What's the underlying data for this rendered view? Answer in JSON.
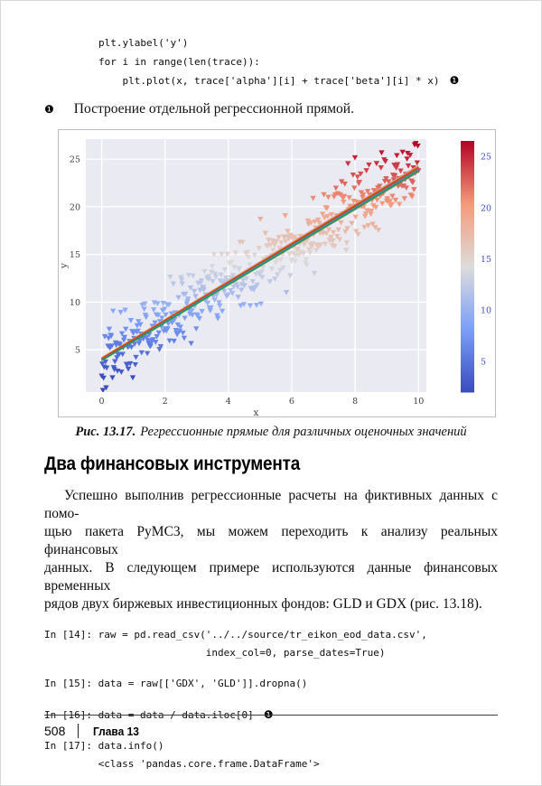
{
  "top_code": {
    "lines": [
      "plt.ylabel('y')",
      "for i in range(len(trace)):",
      "    plt.plot(x, trace['alpha'][i] + trace['beta'][i] * x)"
    ],
    "callout": "❶"
  },
  "annotation": {
    "marker": "❶",
    "text": "Построение отдельной регрессионной прямой."
  },
  "figure_caption": {
    "label": "Рис. 13.17.",
    "text": "Регрессионные прямые для различных оценочных значений"
  },
  "chart_data": {
    "type": "scatter",
    "title": "",
    "xlabel": "x",
    "ylabel": "y",
    "xlim": [
      -0.5,
      10.25
    ],
    "ylim": [
      0.55,
      27.1
    ],
    "xticks": [
      0,
      2,
      4,
      6,
      8,
      10
    ],
    "yticks": [
      5,
      10,
      15,
      20,
      25
    ],
    "grid": true,
    "legend": "none",
    "background": "#eaeaf2",
    "grid_color": "#ffffff",
    "marker": "triangle-down",
    "n_points": 500,
    "seed": 42,
    "model": {
      "intercept": 4,
      "slope": 2,
      "noise_std": 1.8,
      "x_range": [
        0,
        10
      ]
    },
    "colormap": "coolwarm",
    "coolwarm_anchors": [
      [
        59,
        76,
        192
      ],
      [
        124,
        159,
        249
      ],
      [
        221,
        220,
        219
      ],
      [
        244,
        154,
        123
      ],
      [
        180,
        4,
        38
      ]
    ],
    "colorbar": {
      "vmin": 2.0,
      "vmax": 26.5,
      "ticks": [
        5,
        10,
        15,
        20,
        25
      ]
    },
    "regression_lines": {
      "count": 24,
      "intercept_jitter": 0.22,
      "slope_jitter": 0.02,
      "colors": [
        "#1f77b4",
        "#ff7f0e",
        "#2ca02c",
        "#d62728",
        "#9467bd",
        "#8c564b",
        "#e377c2",
        "#7f7f7f",
        "#bcbd22",
        "#17becf"
      ]
    }
  },
  "section": {
    "heading": "Два финансовых инструмента",
    "paragraph_lines": [
      "Успешно выполнив регрессионные расчеты на фиктивных данных с помо-",
      "щью пакета PyMC3, мы можем переходить к анализу реальных финансовых",
      "данных. В следующем примере используются данные финансовых временных",
      "рядов двух биржевых инвестиционных фондов: GLD и GDX (рис. 13.18)."
    ]
  },
  "cells": [
    {
      "lines": [
        "In [14]: raw = pd.read_csv('../../source/tr_eikon_eod_data.csv',",
        "                           index_col=0, parse_dates=True)"
      ],
      "callout": ""
    },
    {
      "lines": [
        "In [15]: data = raw[['GDX', 'GLD']].dropna()"
      ],
      "callout": ""
    },
    {
      "lines": [
        "In [16]: data = data / data.iloc[0]"
      ],
      "callout": "❶"
    },
    {
      "lines": [
        "In [17]: data.info()",
        "         <class 'pandas.core.frame.DataFrame'>"
      ],
      "callout": ""
    }
  ],
  "footer": {
    "page_number": "508",
    "chapter": "Глава 13"
  }
}
